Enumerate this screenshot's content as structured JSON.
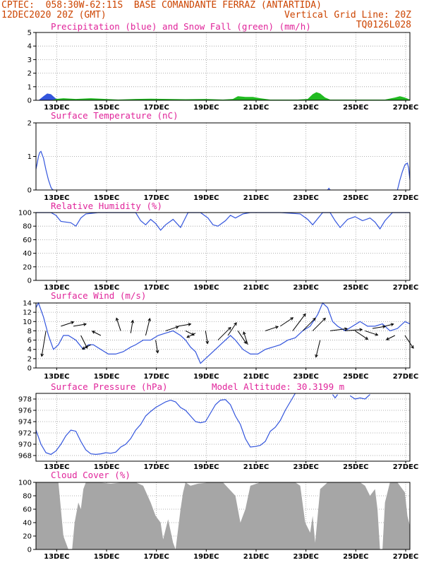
{
  "header": {
    "line1_left": "CPTEC:  058:30W-62:11S  BASE COMANDANTE FERRAZ (ANTARTIDA)",
    "line2_left": "12DEC2020 20Z (GMT)",
    "line2_right": "Vertical Grid Line: 20Z",
    "line3_right": "TQ0126L028"
  },
  "colors": {
    "series_blue": "#3355dd",
    "series_green": "#22bb22",
    "title_pink": "#e0249a",
    "header_orange": "#cc4400",
    "cloud_gray": "#a6a6a6",
    "wind_arrow": "#000000"
  },
  "x_tick_labels": [
    "13DEC",
    "15DEC",
    "17DEC",
    "19DEC",
    "21DEC",
    "23DEC",
    "25DEC",
    "27DEC"
  ],
  "chart_data": [
    {
      "type": "area",
      "title": "Precipitation (blue) and Snow Fall (green) (mm/h)",
      "ylim": [
        0,
        5
      ],
      "yticks": [
        0,
        1,
        2,
        3,
        4,
        5
      ],
      "x_unit": "day of December 2020",
      "xlim": [
        12.0,
        27.0
      ],
      "series": [
        {
          "color": "blue",
          "x": [
            12.1,
            12.3,
            12.45,
            12.6,
            12.75,
            12.9
          ],
          "values": [
            0,
            0.3,
            0.5,
            0.45,
            0.2,
            0
          ]
        },
        {
          "color": "green",
          "x": [
            12.6,
            12.8,
            13.1,
            13.6,
            14.2,
            14.8,
            15.3,
            16.0,
            16.6,
            17.3,
            18.0,
            18.8,
            19.5,
            19.9,
            20.1,
            20.4,
            20.7,
            21.0,
            21.4,
            22.0,
            22.5,
            22.9,
            23.1,
            23.25,
            23.4,
            23.6,
            23.8,
            24.2,
            24.8,
            25.4,
            26.0,
            26.4,
            26.6,
            26.8,
            27.0
          ],
          "values": [
            0,
            0.1,
            0.15,
            0.1,
            0.15,
            0.1,
            0.05,
            0.1,
            0.12,
            0.1,
            0.08,
            0.1,
            0.05,
            0.1,
            0.3,
            0.25,
            0.25,
            0.15,
            0.05,
            0.05,
            0.05,
            0.1,
            0.45,
            0.6,
            0.5,
            0.2,
            0.05,
            0.05,
            0.05,
            0.05,
            0.05,
            0.2,
            0.3,
            0.2,
            0.05
          ]
        }
      ]
    },
    {
      "type": "line",
      "title": "Surface Temperature (nC)",
      "ylim": [
        0,
        2
      ],
      "yticks": [
        0,
        1,
        2
      ],
      "x_unit": "day of December 2020",
      "series": [
        {
          "color": "blue",
          "x": [
            12.0,
            12.05,
            12.1,
            12.15,
            12.2,
            12.3,
            12.4,
            12.5,
            12.6,
            12.65,
            12.7
          ],
          "values": [
            0.62,
            0.8,
            1.0,
            1.12,
            1.15,
            0.95,
            0.6,
            0.3,
            0.08,
            0.02,
            0
          ]
        },
        {
          "color": "blue",
          "x": [
            23.7,
            23.75,
            23.8
          ],
          "values": [
            0,
            0.05,
            0
          ]
        },
        {
          "color": "blue",
          "x": [
            26.5,
            26.6,
            26.7,
            26.8,
            26.9,
            26.95,
            27.0
          ],
          "values": [
            0,
            0.3,
            0.55,
            0.75,
            0.8,
            0.65,
            0.3
          ]
        }
      ]
    },
    {
      "type": "line",
      "title": "Relative Humidity (%)",
      "ylim": [
        0,
        100
      ],
      "yticks": [
        0,
        20,
        40,
        60,
        80,
        100
      ],
      "x_unit": "day of December 2020",
      "series": [
        {
          "color": "blue",
          "x": [
            12.0,
            12.6,
            12.8,
            13.0,
            13.4,
            13.6,
            13.8,
            14.0,
            14.5,
            15.0,
            15.5,
            16.0,
            16.2,
            16.4,
            16.6,
            16.8,
            17.0,
            17.2,
            17.5,
            17.8,
            18.1,
            18.3,
            18.6,
            18.9,
            19.1,
            19.3,
            19.6,
            19.8,
            20.0,
            20.3,
            20.6,
            20.9,
            21.2,
            21.5,
            21.8,
            22.2,
            22.6,
            22.9,
            23.1,
            23.5,
            23.8,
            24.0,
            24.2,
            24.5,
            24.8,
            25.1,
            25.4,
            25.6,
            25.8,
            26.0,
            26.3,
            26.6,
            27.0
          ],
          "values": [
            100,
            100,
            96,
            87,
            85,
            80,
            92,
            98,
            100,
            100,
            100,
            100,
            88,
            82,
            90,
            84,
            74,
            82,
            90,
            78,
            100,
            100,
            100,
            92,
            82,
            80,
            88,
            96,
            92,
            98,
            100,
            100,
            100,
            100,
            100,
            99,
            98,
            90,
            82,
            100,
            100,
            88,
            78,
            90,
            94,
            88,
            92,
            86,
            76,
            88,
            100,
            100,
            100
          ]
        }
      ]
    },
    {
      "type": "line",
      "title": "Surface Wind (m/s)",
      "ylim": [
        0,
        14
      ],
      "yticks": [
        0,
        2,
        4,
        6,
        8,
        10,
        12,
        14
      ],
      "x_unit": "day of December 2020",
      "series": [
        {
          "color": "blue",
          "x": [
            12.0,
            12.1,
            12.3,
            12.5,
            12.7,
            12.9,
            13.1,
            13.3,
            13.6,
            13.9,
            14.1,
            14.3,
            14.6,
            14.9,
            15.2,
            15.5,
            15.8,
            16.0,
            16.3,
            16.6,
            16.9,
            17.2,
            17.5,
            17.8,
            18.0,
            18.2,
            18.4,
            18.6,
            18.8,
            19.0,
            19.2,
            19.5,
            19.8,
            20.0,
            20.3,
            20.6,
            20.9,
            21.2,
            21.5,
            21.8,
            22.1,
            22.4,
            22.7,
            23.0,
            23.3,
            23.5,
            23.7,
            23.9,
            24.1,
            24.4,
            24.7,
            25.0,
            25.3,
            25.6,
            25.9,
            26.2,
            26.5,
            26.8,
            27.0
          ],
          "values": [
            13,
            14,
            11,
            7,
            4,
            5,
            7,
            7,
            6,
            4,
            5,
            5,
            4,
            3,
            3,
            3.5,
            4.5,
            5,
            6,
            6,
            7,
            7.5,
            8,
            7,
            6,
            4.5,
            3.5,
            1,
            2,
            3,
            4,
            5.5,
            7,
            6,
            4,
            3,
            3,
            4,
            4.5,
            5,
            6,
            6.5,
            8,
            9,
            11.5,
            14,
            13,
            10,
            9,
            8,
            9,
            10,
            9,
            9,
            9.5,
            8,
            8.5,
            10,
            9.5
          ]
        }
      ],
      "wind_vectors_m_s": [
        {
          "x": 12.4,
          "dx": -1,
          "dy": -6,
          "y": 8
        },
        {
          "x": 13.0,
          "dx": 3,
          "dy": 1,
          "y": 9
        },
        {
          "x": 13.5,
          "dx": 3,
          "dy": 0.5,
          "y": 9
        },
        {
          "x": 13.8,
          "dx": 1.5,
          "dy": -3,
          "y": 7
        },
        {
          "x": 14.2,
          "dx": -2,
          "dy": -1,
          "y": 5
        },
        {
          "x": 14.6,
          "dx": -2,
          "dy": 1,
          "y": 7
        },
        {
          "x": 15.4,
          "dx": -1,
          "dy": 3,
          "y": 8
        },
        {
          "x": 15.8,
          "dx": 0.5,
          "dy": 3,
          "y": 7.5
        },
        {
          "x": 16.4,
          "dx": 1,
          "dy": 4,
          "y": 7
        },
        {
          "x": 16.8,
          "dx": 0.5,
          "dy": -3,
          "y": 6
        },
        {
          "x": 17.2,
          "dx": 3,
          "dy": 1,
          "y": 8
        },
        {
          "x": 17.7,
          "dx": 3,
          "dy": 0.5,
          "y": 9
        },
        {
          "x": 18.0,
          "dx": 2,
          "dy": -1,
          "y": 8
        },
        {
          "x": 18.4,
          "dx": -2,
          "dy": -1,
          "y": 7.5
        },
        {
          "x": 18.8,
          "dx": 0.5,
          "dy": -3,
          "y": 8
        },
        {
          "x": 19.3,
          "dx": 3,
          "dy": 3,
          "y": 6
        },
        {
          "x": 19.7,
          "dx": 2,
          "dy": 3,
          "y": 7
        },
        {
          "x": 20.1,
          "dx": 2,
          "dy": -3,
          "y": 8
        },
        {
          "x": 20.5,
          "dx": -1,
          "dy": 3,
          "y": 5
        },
        {
          "x": 21.2,
          "dx": 3,
          "dy": 1,
          "y": 8
        },
        {
          "x": 21.8,
          "dx": 3,
          "dy": 2,
          "y": 9
        },
        {
          "x": 22.3,
          "dx": 3,
          "dy": 4,
          "y": 8
        },
        {
          "x": 22.7,
          "dx": 3,
          "dy": 3,
          "y": 8
        },
        {
          "x": 23.1,
          "dx": 3,
          "dy": 3,
          "y": 8
        },
        {
          "x": 23.4,
          "dx": -1,
          "dy": -4,
          "y": 6
        },
        {
          "x": 23.8,
          "dx": 4,
          "dy": 0.5,
          "y": 8
        },
        {
          "x": 24.4,
          "dx": 4,
          "dy": 0.3,
          "y": 8
        },
        {
          "x": 24.8,
          "dx": 3,
          "dy": -2,
          "y": 8
        },
        {
          "x": 25.2,
          "dx": 3,
          "dy": -1,
          "y": 8
        },
        {
          "x": 25.5,
          "dx": 3,
          "dy": 0.5,
          "y": 8.5
        },
        {
          "x": 26.0,
          "dx": 2,
          "dy": 0.5,
          "y": 9
        },
        {
          "x": 26.4,
          "dx": -2,
          "dy": -1,
          "y": 7
        },
        {
          "x": 26.8,
          "dx": 2,
          "dy": -3,
          "y": 7
        }
      ]
    },
    {
      "type": "line",
      "title": "Surface Pressure (hPa)",
      "note": "Model Altitude: 30.3199 m",
      "ylim": [
        967,
        979
      ],
      "yticks": [
        968,
        970,
        972,
        974,
        976,
        978
      ],
      "x_unit": "day of December 2020",
      "series": [
        {
          "color": "blue",
          "x": [
            12.0,
            12.2,
            12.4,
            12.6,
            12.8,
            13.0,
            13.2,
            13.4,
            13.6,
            13.8,
            14.0,
            14.2,
            14.4,
            14.6,
            14.8,
            15.0,
            15.2,
            15.4,
            15.6,
            15.8,
            16.0,
            16.2,
            16.4,
            16.6,
            16.8,
            17.0,
            17.2,
            17.4,
            17.6,
            17.8,
            18.0,
            18.2,
            18.4,
            18.6,
            18.8,
            19.0,
            19.2,
            19.4,
            19.6,
            19.8,
            20.0,
            20.2,
            20.4,
            20.6,
            20.8,
            21.0,
            21.2,
            21.4,
            21.6,
            21.8,
            22.0,
            22.2,
            22.4
          ],
          "values": [
            972.5,
            970,
            968.5,
            968.2,
            968.8,
            970,
            971.5,
            972.5,
            972.3,
            970.5,
            969,
            968.3,
            968.2,
            968.3,
            968.5,
            968.4,
            968.6,
            969.5,
            970,
            971,
            972.5,
            973.5,
            975,
            975.8,
            976.5,
            977,
            977.5,
            977.8,
            977.5,
            976.5,
            976,
            975,
            974,
            973.8,
            974,
            975.5,
            977,
            977.8,
            977.9,
            977,
            975,
            973.5,
            971,
            969.5,
            969.6,
            969.8,
            970.5,
            972.3,
            973,
            974.2,
            976,
            977.5,
            979
          ]
        },
        {
          "color": "blue",
          "x": [
            23.9,
            24.0,
            24.1
          ],
          "values": [
            978.8,
            978.2,
            978.8
          ]
        },
        {
          "color": "blue",
          "x": [
            24.6,
            24.8,
            25.0,
            25.2,
            25.4
          ],
          "values": [
            978.6,
            978,
            978.2,
            978,
            978.8
          ]
        }
      ]
    },
    {
      "type": "area",
      "title": "Cloud Cover (%)",
      "ylim": [
        0,
        100
      ],
      "yticks": [
        0,
        20,
        40,
        60,
        80,
        100
      ],
      "x_unit": "day of December 2020",
      "series": [
        {
          "color": "gray",
          "x": [
            12.0,
            12.9,
            13.0,
            13.1,
            13.3,
            13.45,
            13.55,
            13.7,
            13.8,
            13.9,
            14.0,
            14.2,
            14.5,
            15.0,
            15.5,
            16.0,
            16.3,
            16.6,
            16.8,
            17.0,
            17.1,
            17.3,
            17.5,
            17.6,
            17.7,
            17.8,
            17.9,
            18.0,
            18.2,
            18.5,
            19.0,
            19.5,
            20.0,
            20.2,
            20.4,
            20.6,
            21.0,
            21.5,
            22.0,
            22.4,
            22.6,
            22.8,
            23.0,
            23.1,
            23.2,
            23.4,
            23.7,
            24.0,
            24.5,
            25.0,
            25.2,
            25.4,
            25.6,
            25.7,
            25.8,
            25.9,
            26.0,
            26.2,
            26.5,
            26.8,
            26.9,
            27.0
          ],
          "values": [
            100,
            100,
            60,
            20,
            0,
            0,
            40,
            70,
            60,
            90,
            100,
            100,
            100,
            98,
            100,
            100,
            95,
            70,
            50,
            40,
            15,
            45,
            10,
            0,
            30,
            60,
            85,
            100,
            95,
            98,
            100,
            100,
            80,
            40,
            60,
            95,
            100,
            100,
            100,
            100,
            95,
            40,
            25,
            50,
            10,
            90,
            100,
            100,
            100,
            100,
            95,
            80,
            90,
            60,
            0,
            0,
            70,
            100,
            100,
            85,
            50,
            35
          ]
        }
      ]
    }
  ]
}
